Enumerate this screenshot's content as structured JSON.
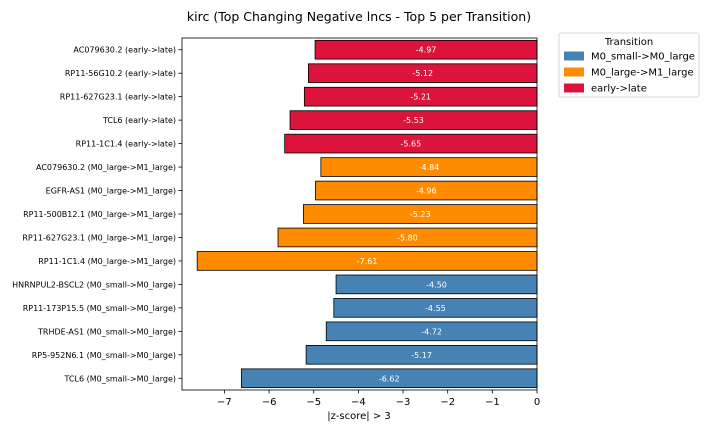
{
  "chart_data": {
    "type": "bar",
    "orientation": "horizontal",
    "title": "kirc (Top Changing Negative lncs - Top 5 per Transition)",
    "xlabel": "|z-score| > 3",
    "ylabel": "",
    "xlim": [
      -7.95,
      0
    ],
    "xticks": [
      "−7",
      "−6",
      "−5",
      "−4",
      "−3",
      "−2",
      "−1",
      "0"
    ],
    "xtick_values": [
      -7,
      -6,
      -5,
      -4,
      -3,
      -2,
      -1,
      0
    ],
    "legend": {
      "title": "Transition",
      "placement": "top-right outside",
      "entries": [
        {
          "label": "M0_small->M0_large",
          "color": "#4682b4"
        },
        {
          "label": "M0_large->M1_large",
          "color": "#ff8c00"
        },
        {
          "label": "early->late",
          "color": "#dc143c"
        }
      ]
    },
    "bars": [
      {
        "label": "AC079630.2 (early->late)",
        "value": -4.97,
        "value_label": "-4.97",
        "color": "#dc143c"
      },
      {
        "label": "RP11-56G10.2 (early->late)",
        "value": -5.12,
        "value_label": "-5.12",
        "color": "#dc143c"
      },
      {
        "label": "RP11-627G23.1 (early->late)",
        "value": -5.21,
        "value_label": "-5.21",
        "color": "#dc143c"
      },
      {
        "label": "TCL6 (early->late)",
        "value": -5.53,
        "value_label": "-5.53",
        "color": "#dc143c"
      },
      {
        "label": "RP11-1C1.4 (early->late)",
        "value": -5.65,
        "value_label": "-5.65",
        "color": "#dc143c"
      },
      {
        "label": "AC079630.2 (M0_large->M1_large)",
        "value": -4.84,
        "value_label": "-4.84",
        "color": "#ff8c00"
      },
      {
        "label": "EGFR-AS1 (M0_large->M1_large)",
        "value": -4.96,
        "value_label": "-4.96",
        "color": "#ff8c00"
      },
      {
        "label": "RP11-500B12.1 (M0_large->M1_large)",
        "value": -5.23,
        "value_label": "-5.23",
        "color": "#ff8c00"
      },
      {
        "label": "RP11-627G23.1 (M0_large->M1_large)",
        "value": -5.8,
        "value_label": "-5.80",
        "color": "#ff8c00"
      },
      {
        "label": "RP11-1C1.4 (M0_large->M1_large)",
        "value": -7.61,
        "value_label": "-7.61",
        "color": "#ff8c00"
      },
      {
        "label": "HNRNPUL2-BSCL2 (M0_small->M0_large)",
        "value": -4.5,
        "value_label": "-4.50",
        "color": "#4682b4"
      },
      {
        "label": "RP11-173P15.5 (M0_small->M0_large)",
        "value": -4.55,
        "value_label": "-4.55",
        "color": "#4682b4"
      },
      {
        "label": "TRHDE-AS1 (M0_small->M0_large)",
        "value": -4.72,
        "value_label": "-4.72",
        "color": "#4682b4"
      },
      {
        "label": "RP5-952N6.1 (M0_small->M0_large)",
        "value": -5.17,
        "value_label": "-5.17",
        "color": "#4682b4"
      },
      {
        "label": "TCL6 (M0_small->M0_large)",
        "value": -6.62,
        "value_label": "-6.62",
        "color": "#4682b4"
      }
    ]
  }
}
